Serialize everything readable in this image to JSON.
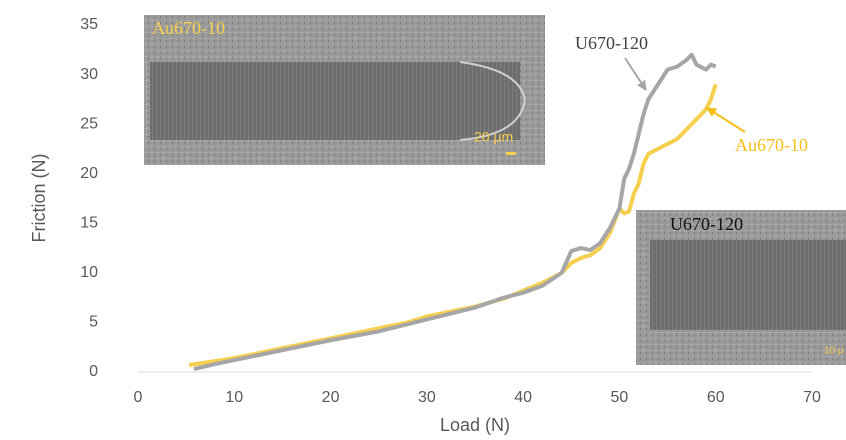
{
  "chart_data": {
    "type": "line",
    "xlabel": "Load (N)",
    "ylabel": "Friction (N)",
    "xlim": [
      0,
      70
    ],
    "xticks": [
      0,
      10,
      20,
      30,
      40,
      50,
      60,
      70
    ],
    "ylim": [
      0,
      35
    ],
    "yticks": [
      0,
      5,
      10,
      15,
      20,
      25,
      30,
      35
    ],
    "grid": false,
    "series": [
      {
        "name": "Au670-10",
        "color": "#f7cf4e",
        "x": [
          5.3,
          8,
          10,
          15,
          20,
          25,
          28,
          30,
          35,
          38,
          40,
          42,
          44,
          45,
          46,
          47,
          48,
          49,
          50,
          50.5,
          51,
          51.5,
          52,
          52.5,
          53,
          54,
          55,
          56,
          57,
          58,
          59,
          59.5,
          60
        ],
        "values": [
          0.7,
          1.1,
          1.4,
          2.4,
          3.4,
          4.4,
          5.0,
          5.6,
          6.6,
          7.4,
          8.2,
          9.0,
          10.0,
          11.0,
          11.5,
          11.8,
          12.5,
          14,
          16.5,
          16,
          16.2,
          18,
          19,
          21,
          22,
          22.5,
          23,
          23.5,
          24.5,
          25.5,
          26.5,
          27.5,
          29
        ]
      },
      {
        "name": "U670-120",
        "color": "#a6a6a6",
        "x": [
          5.8,
          8,
          10,
          15,
          20,
          25,
          30,
          35,
          38,
          40,
          42,
          44,
          45,
          46,
          47,
          48,
          49,
          50,
          50.5,
          51,
          51.5,
          52,
          52.5,
          53,
          54,
          55,
          56,
          57,
          57.5,
          58,
          59,
          59.5,
          60
        ],
        "values": [
          0.3,
          0.8,
          1.2,
          2.2,
          3.2,
          4.1,
          5.3,
          6.5,
          7.5,
          8.0,
          8.7,
          10.0,
          12.2,
          12.5,
          12.3,
          13.0,
          14.5,
          16.5,
          19.5,
          20.5,
          22,
          24,
          26,
          27.5,
          29,
          30.5,
          30.8,
          31.5,
          32,
          31,
          30.5,
          31,
          30.8
        ]
      }
    ],
    "insets": [
      {
        "label": "Au670-10",
        "scale": "20 µm"
      },
      {
        "label": "U670-120",
        "scale": "10 µ"
      }
    ]
  }
}
